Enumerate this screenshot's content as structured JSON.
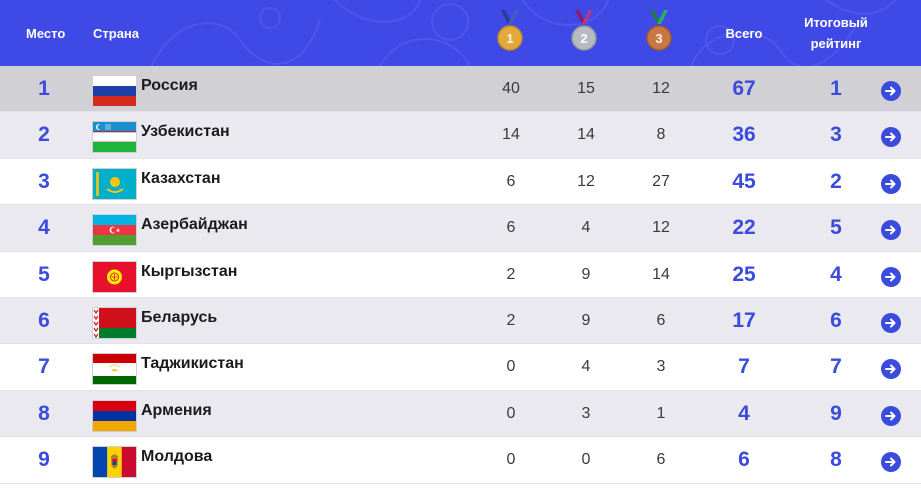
{
  "header": {
    "place": "Место",
    "country": "Страна",
    "gold_label": "1",
    "silver_label": "2",
    "bronze_label": "3",
    "total": "Всего",
    "rating_line1": "Итоговый",
    "rating_line2": "рейтинг"
  },
  "colors": {
    "header_bg": "#3f49e6",
    "accent": "#3b4bdc",
    "row_alt": "#e9e9ef",
    "row_highlight": "#d0d0d5"
  },
  "rows": [
    {
      "place": "1",
      "country": "Россия",
      "flag": "russia-flag",
      "gold": "40",
      "silver": "15",
      "bronze": "12",
      "total": "67",
      "rating": "1"
    },
    {
      "place": "2",
      "country": "Узбекистан",
      "flag": "uzbekistan-flag",
      "gold": "14",
      "silver": "14",
      "bronze": "8",
      "total": "36",
      "rating": "3"
    },
    {
      "place": "3",
      "country": "Казахстан",
      "flag": "kazakhstan-flag",
      "gold": "6",
      "silver": "12",
      "bronze": "27",
      "total": "45",
      "rating": "2"
    },
    {
      "place": "4",
      "country": "Азербайджан",
      "flag": "azerbaijan-flag",
      "gold": "6",
      "silver": "4",
      "bronze": "12",
      "total": "22",
      "rating": "5"
    },
    {
      "place": "5",
      "country": "Кыргызстан",
      "flag": "kyrgyzstan-flag",
      "gold": "2",
      "silver": "9",
      "bronze": "14",
      "total": "25",
      "rating": "4"
    },
    {
      "place": "6",
      "country": "Беларусь",
      "flag": "belarus-flag",
      "gold": "2",
      "silver": "9",
      "bronze": "6",
      "total": "17",
      "rating": "6"
    },
    {
      "place": "7",
      "country": "Таджикистан",
      "flag": "tajikistan-flag",
      "gold": "0",
      "silver": "4",
      "bronze": "3",
      "total": "7",
      "rating": "7"
    },
    {
      "place": "8",
      "country": "Армения",
      "flag": "armenia-flag",
      "gold": "0",
      "silver": "3",
      "bronze": "1",
      "total": "4",
      "rating": "9"
    },
    {
      "place": "9",
      "country": "Молдова",
      "flag": "moldova-flag",
      "gold": "0",
      "silver": "0",
      "bronze": "6",
      "total": "6",
      "rating": "8"
    }
  ],
  "row_action_icon": "arrow-right-circle-icon"
}
